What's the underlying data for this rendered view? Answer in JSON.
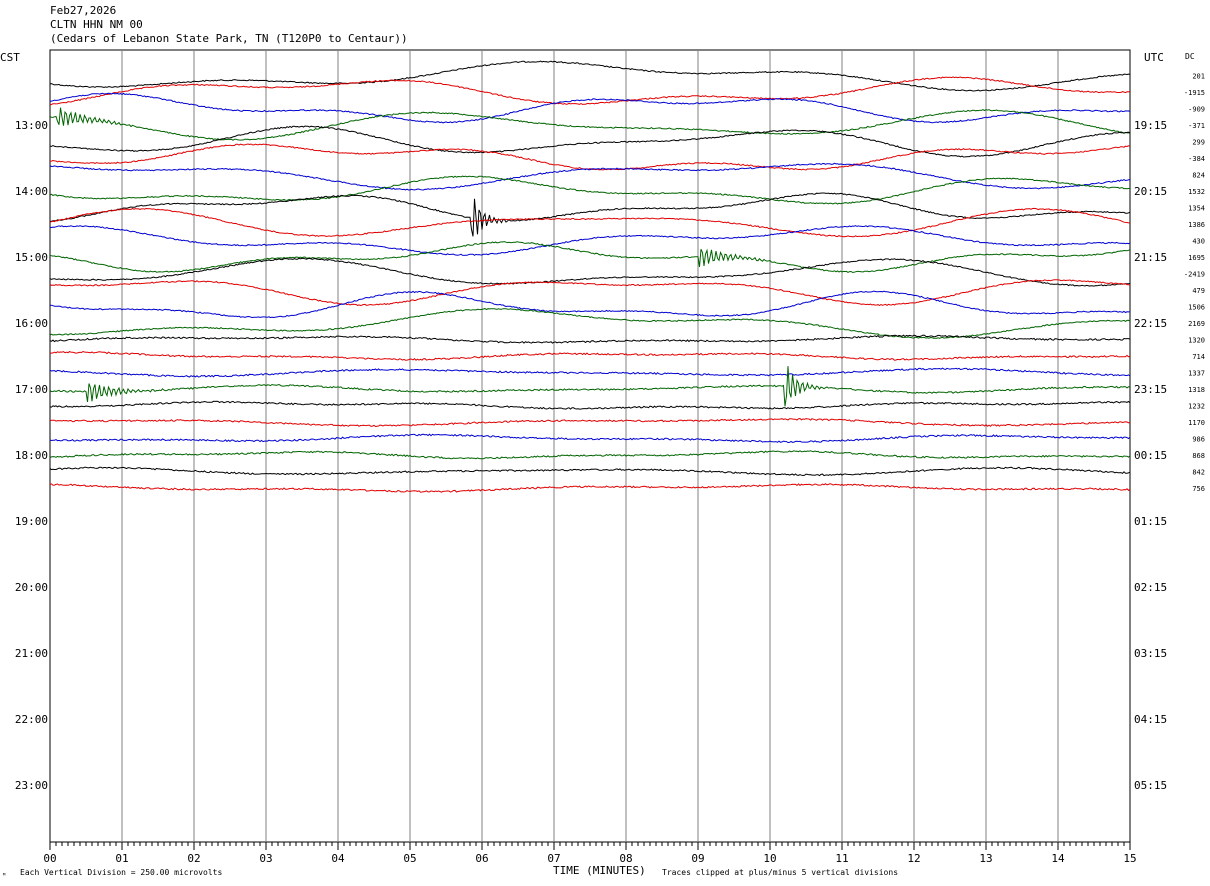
{
  "header": {
    "date": "Feb27,2026",
    "station": "CLTN HHN NM 00",
    "location": "(Cedars of Lebanon State Park, TN (T120P0 to Centaur))"
  },
  "labels": {
    "left_tz": "CST",
    "right_tz": "UTC",
    "dc_label": "DC",
    "xlabel": "TIME (MINUTES)",
    "scale_note": "Each Vertical Division =  250.00 microvolts",
    "clip_note": "Traces clipped at plus/minus 5 vertical divisions",
    "corner_mark": "ᴹ"
  },
  "colors": {
    "background": "#ffffff",
    "grid": "#808080",
    "trace_cycle": [
      "#000000",
      "#e00000",
      "#0000d0",
      "#006400"
    ]
  },
  "chart_data": {
    "type": "line",
    "title": "CLTN HHN NM 00",
    "xlabel": "TIME (MINUTES)",
    "x_ticks": [
      "00",
      "01",
      "02",
      "03",
      "04",
      "05",
      "06",
      "07",
      "08",
      "09",
      "10",
      "11",
      "12",
      "13",
      "14",
      "15"
    ],
    "xlim": [
      0,
      15
    ],
    "left_hour_labels": [
      "13:00",
      "14:00",
      "15:00",
      "16:00",
      "17:00",
      "18:00",
      "19:00",
      "20:00",
      "21:00",
      "22:00",
      "23:00"
    ],
    "right_hour_labels": [
      "19:15",
      "20:15",
      "21:15",
      "22:15",
      "23:15",
      "00:15",
      "01:15",
      "02:15",
      "03:15",
      "04:15",
      "05:15"
    ],
    "rows_per_hour": 4,
    "first_row_offset_rows": 3,
    "trace_dc_values": [
      "201",
      "-1915",
      "-909",
      "-371",
      "299",
      "-384",
      "824",
      "1532",
      "1354",
      "1386",
      "430",
      "1695",
      "-2419",
      "479",
      "1506",
      "2169",
      "1320",
      "714",
      "1337",
      "1318",
      "1232",
      "1170",
      "986",
      "868",
      "842",
      "756"
    ],
    "trace_count": 26,
    "grid": true,
    "events": [
      {
        "trace": 3,
        "minute": 0.1,
        "type": "burst"
      },
      {
        "trace": 8,
        "minute": 5.85,
        "type": "spike"
      },
      {
        "trace": 11,
        "minute": 9.0,
        "type": "burst"
      },
      {
        "trace": 19,
        "minute": 10.2,
        "type": "spike"
      },
      {
        "trace": 19,
        "minute": 0.5,
        "type": "burst"
      }
    ]
  }
}
